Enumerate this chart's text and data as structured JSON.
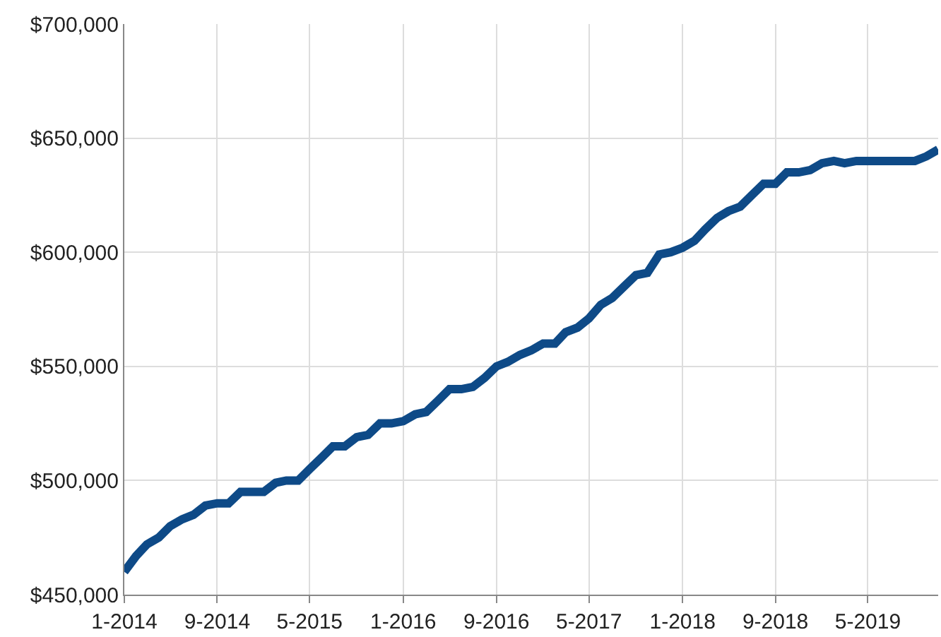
{
  "chart_data": {
    "type": "line",
    "x": [
      "2014-01",
      "2014-02",
      "2014-03",
      "2014-04",
      "2014-05",
      "2014-06",
      "2014-07",
      "2014-08",
      "2014-09",
      "2014-10",
      "2014-11",
      "2014-12",
      "2015-01",
      "2015-02",
      "2015-03",
      "2015-04",
      "2015-05",
      "2015-06",
      "2015-07",
      "2015-08",
      "2015-09",
      "2015-10",
      "2015-11",
      "2015-12",
      "2016-01",
      "2016-02",
      "2016-03",
      "2016-04",
      "2016-05",
      "2016-06",
      "2016-07",
      "2016-08",
      "2016-09",
      "2016-10",
      "2016-11",
      "2016-12",
      "2017-01",
      "2017-02",
      "2017-03",
      "2017-04",
      "2017-05",
      "2017-06",
      "2017-07",
      "2017-08",
      "2017-09",
      "2017-10",
      "2017-11",
      "2017-12",
      "2018-01",
      "2018-02",
      "2018-03",
      "2018-04",
      "2018-05",
      "2018-06",
      "2018-07",
      "2018-08",
      "2018-09",
      "2018-10",
      "2018-11",
      "2018-12",
      "2019-01",
      "2019-02",
      "2019-03",
      "2019-04",
      "2019-05",
      "2019-06",
      "2019-07",
      "2019-08",
      "2019-09",
      "2019-10",
      "2019-11"
    ],
    "series": [
      {
        "color": "#0e4a87",
        "values": [
          460000,
          467000,
          472000,
          475000,
          480000,
          483000,
          485000,
          489000,
          490000,
          490000,
          495000,
          495000,
          495000,
          499000,
          500000,
          500000,
          505000,
          510000,
          515000,
          515000,
          519000,
          520000,
          525000,
          525000,
          526000,
          529000,
          530000,
          535000,
          540000,
          540000,
          541000,
          545000,
          550000,
          552000,
          555000,
          557000,
          560000,
          560000,
          565000,
          567000,
          571000,
          577000,
          580000,
          585000,
          590000,
          591000,
          599000,
          600000,
          602000,
          605000,
          610000,
          615000,
          618000,
          620000,
          625000,
          630000,
          630000,
          635000,
          635000,
          636000,
          639000,
          640000,
          639000,
          640000,
          640000,
          640000,
          640000,
          640000,
          640000,
          642000,
          645000
        ]
      }
    ],
    "xlim": [
      "2014-01",
      "2019-11"
    ],
    "xticks": [
      {
        "value": "2014-01",
        "label": "1-2014"
      },
      {
        "value": "2014-09",
        "label": "9-2014"
      },
      {
        "value": "2015-05",
        "label": "5-2015"
      },
      {
        "value": "2016-01",
        "label": "1-2016"
      },
      {
        "value": "2016-09",
        "label": "9-2016"
      },
      {
        "value": "2017-05",
        "label": "5-2017"
      },
      {
        "value": "2018-01",
        "label": "1-2018"
      },
      {
        "value": "2018-09",
        "label": "9-2018"
      },
      {
        "value": "2019-05",
        "label": "5-2019"
      }
    ],
    "ylim": [
      450000,
      700000
    ],
    "yticks": [
      {
        "value": 450000,
        "label": "$450,000"
      },
      {
        "value": 500000,
        "label": "$500,000"
      },
      {
        "value": 550000,
        "label": "$550,000"
      },
      {
        "value": 600000,
        "label": "$600,000"
      },
      {
        "value": 650000,
        "label": "$650,000"
      },
      {
        "value": 700000,
        "label": "$700,000"
      }
    ],
    "grid": true,
    "legend": false,
    "marker": "none",
    "line_style": "solid"
  }
}
